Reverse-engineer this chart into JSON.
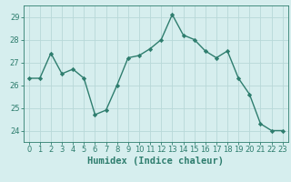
{
  "x": [
    0,
    1,
    2,
    3,
    4,
    5,
    6,
    7,
    8,
    9,
    10,
    11,
    12,
    13,
    14,
    15,
    16,
    17,
    18,
    19,
    20,
    21,
    22,
    23
  ],
  "y": [
    26.3,
    26.3,
    27.4,
    26.5,
    26.7,
    26.3,
    24.7,
    24.9,
    26.0,
    27.2,
    27.3,
    27.6,
    28.0,
    29.1,
    28.2,
    28.0,
    27.5,
    27.2,
    27.5,
    26.3,
    25.6,
    24.3,
    24.0,
    24.0
  ],
  "line_color": "#2e7d6e",
  "marker": "D",
  "marker_size": 2.2,
  "bg_color": "#d6eeee",
  "grid_color": "#b8d8d8",
  "title": "",
  "xlabel": "Humidex (Indice chaleur)",
  "ylabel": "",
  "xlim": [
    -0.5,
    23.5
  ],
  "ylim": [
    23.5,
    29.5
  ],
  "yticks": [
    24,
    25,
    26,
    27,
    28,
    29
  ],
  "xticks": [
    0,
    1,
    2,
    3,
    4,
    5,
    6,
    7,
    8,
    9,
    10,
    11,
    12,
    13,
    14,
    15,
    16,
    17,
    18,
    19,
    20,
    21,
    22,
    23
  ],
  "tick_fontsize": 6.0,
  "xlabel_fontsize": 7.5,
  "line_width": 1.0
}
